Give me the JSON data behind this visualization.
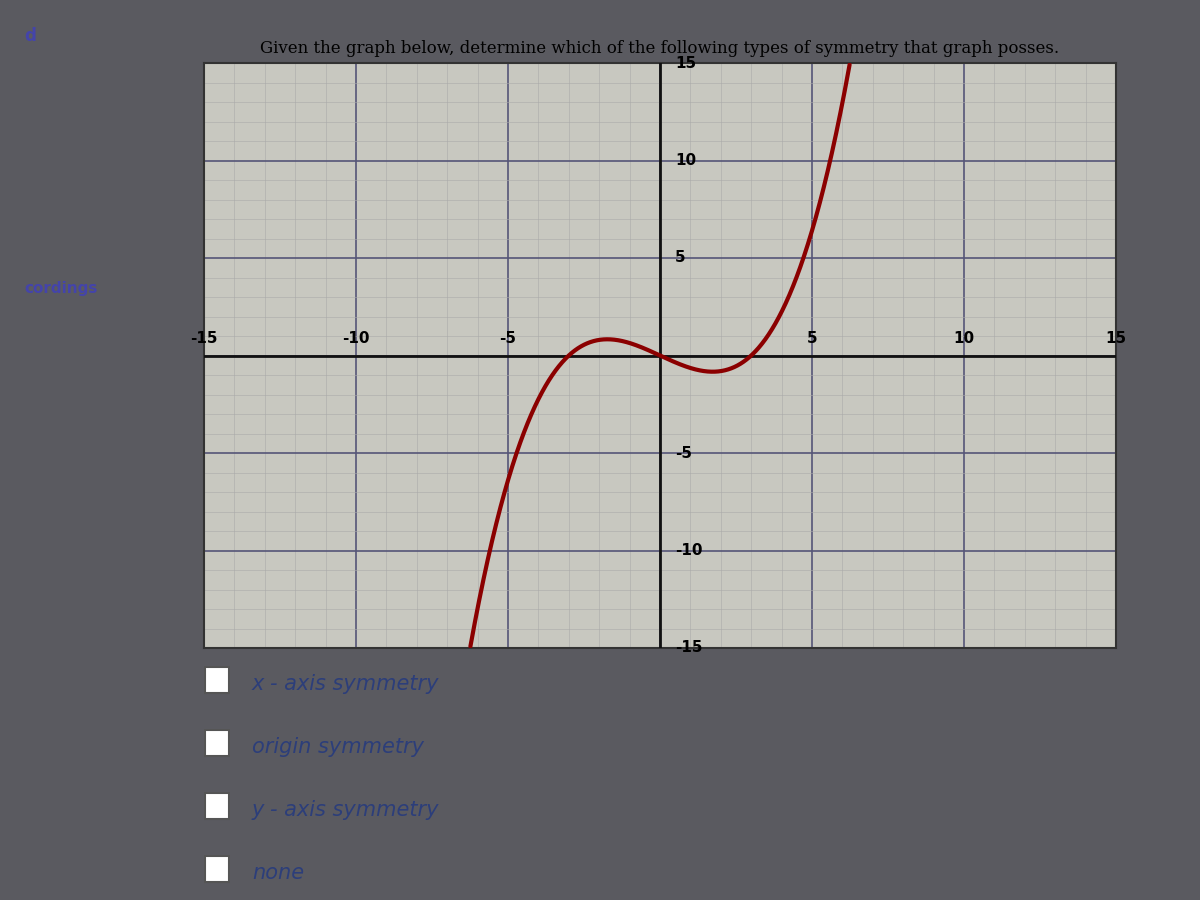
{
  "title": "Given the graph below, determine which of the following types of symmetry that graph posses.",
  "xlim": [
    -15,
    15
  ],
  "ylim": [
    -15,
    15
  ],
  "xticks": [
    -15,
    -10,
    -5,
    0,
    5,
    10,
    15
  ],
  "yticks": [
    -15,
    -10,
    -5,
    0,
    5,
    10,
    15
  ],
  "curve_color": "#8B0000",
  "curve_linewidth": 3.0,
  "minor_grid_color": "#aaaaaa",
  "major_grid_color": "#555577",
  "bg_color": "#c8c8c0",
  "panel_bg": "#b0b0a8",
  "outer_bg": "#5a5a60",
  "axis_color": "#111111",
  "choices": [
    "x - axis symmetry",
    "origin symmetry",
    "y - axis symmetry",
    "none"
  ],
  "choice_color": "#2c3e7a",
  "choice_fontsize": 15,
  "title_fontsize": 12,
  "cubic_a": 0.08,
  "cubic_b": -0.72,
  "label_fontsize": 11
}
